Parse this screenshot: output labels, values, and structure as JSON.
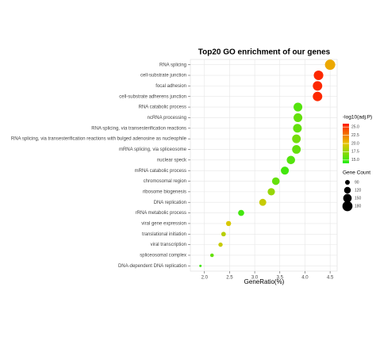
{
  "chart_data": {
    "type": "dot",
    "title": "Top20 GO enrichment of our genes",
    "x_label": "GeneRatio(%)",
    "categories": [
      "RNA splicing",
      "cell-substrate junction",
      "focal adhesion",
      "cell-substrate adherens junction",
      "RNA catabolic process",
      "ncRNA processing",
      "RNA splicing, via transesterification reactions",
      "RNA splicing, via transesterification reactions with bulged adenosine as nucleophile",
      "mRNA splicing, via spliceosome",
      "nuclear speck",
      "mRNA catabolic process",
      "chromosomal region",
      "ribosome biogenesis",
      "DNA replication",
      "rRNA metabolic process",
      "viral gene expression",
      "translational initiation",
      "viral transcription",
      "spliceosomal complex",
      "DNA-dependent DNA replication"
    ],
    "values": [
      4.5,
      4.27,
      4.25,
      4.25,
      3.86,
      3.86,
      3.85,
      3.83,
      3.83,
      3.72,
      3.6,
      3.42,
      3.33,
      3.16,
      2.73,
      2.48,
      2.38,
      2.32,
      2.15,
      1.92
    ],
    "sizes": [
      185,
      170,
      168,
      168,
      155,
      155,
      154,
      153,
      153,
      148,
      142,
      135,
      130,
      125,
      110,
      95,
      88,
      84,
      75,
      60
    ],
    "color_values": [
      21,
      25.5,
      25.5,
      25.5,
      15.5,
      16,
      16,
      16.5,
      16,
      15.5,
      15,
      16,
      17.5,
      19,
      15,
      19.5,
      18.5,
      19,
      16,
      15
    ],
    "xlim": [
      1.72,
      4.64
    ],
    "xticks": [
      {
        "value": 2,
        "label": "2.0"
      },
      2.5,
      {
        "value": 3,
        "label": "3.0"
      },
      3.5,
      {
        "value": 4,
        "label": "4.0"
      },
      4.5
    ],
    "color_title": "-log10(adj.P)",
    "color_lim": [
      14,
      26
    ],
    "color_ticks": [
      {
        "value": 25,
        "label": "25.0"
      },
      22.5,
      {
        "value": 20,
        "label": "20.0"
      },
      17.5,
      {
        "value": 15,
        "label": "15.0"
      }
    ],
    "color_scale": [
      "#22ee11",
      "#e8c400",
      "#ff1a00"
    ],
    "size_title": "Gene Count",
    "size_ticks": [
      90,
      120,
      150,
      180
    ],
    "grid": true
  }
}
